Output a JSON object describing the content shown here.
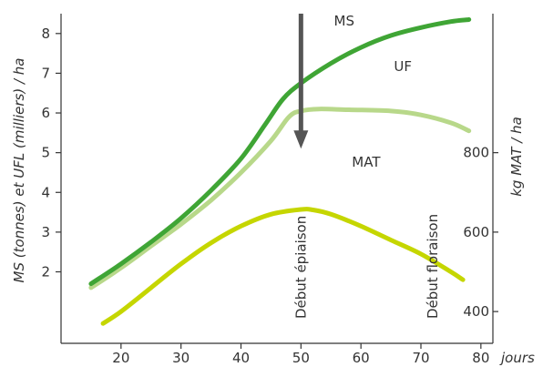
{
  "chart_data": {
    "type": "line",
    "xlabel": "jours",
    "ylabel_left": "MS (tonnes) et UFL (milliers) / ha",
    "ylabel_right": "kg MAT / ha",
    "xlim": [
      10,
      82
    ],
    "x_ticks": [
      20,
      30,
      40,
      50,
      60,
      70,
      80
    ],
    "ylim_left": [
      0.2,
      8.5
    ],
    "y_ticks_left": [
      2,
      3,
      4,
      5,
      6,
      7,
      8
    ],
    "y_ticks_right": [
      400,
      600,
      800
    ],
    "right_axis_scale": {
      "left_value_at_400": 1,
      "left_value_per_200": 2
    },
    "grid": false,
    "series": [
      {
        "name": "MS",
        "axis": "left",
        "color": "#3fa535",
        "x": [
          15,
          20,
          25,
          30,
          35,
          40,
          44,
          47,
          50,
          55,
          60,
          65,
          70,
          75,
          78
        ],
        "y": [
          1.7,
          2.2,
          2.75,
          3.35,
          4.05,
          4.85,
          5.7,
          6.35,
          6.75,
          7.25,
          7.65,
          7.95,
          8.15,
          8.3,
          8.35
        ]
      },
      {
        "name": "UF",
        "axis": "left",
        "color": "#b8d88a",
        "x": [
          15,
          20,
          25,
          30,
          35,
          40,
          45,
          48,
          50,
          53,
          58,
          65,
          70,
          75,
          78
        ],
        "y": [
          1.6,
          2.1,
          2.65,
          3.2,
          3.8,
          4.5,
          5.3,
          5.9,
          6.05,
          6.1,
          6.08,
          6.05,
          5.95,
          5.75,
          5.55
        ]
      },
      {
        "name": "MAT",
        "axis": "right",
        "color": "#c5d600",
        "x": [
          17,
          20,
          25,
          30,
          35,
          40,
          45,
          50,
          52,
          55,
          60,
          65,
          70,
          75,
          77
        ],
        "y": [
          370,
          400,
          460,
          520,
          573,
          615,
          645,
          657,
          656,
          645,
          615,
          580,
          545,
          500,
          480
        ]
      }
    ],
    "annotations": [
      {
        "text": "Début épiaison",
        "x": 50
      },
      {
        "text": "Début floraison",
        "x": 72
      }
    ],
    "arrow": {
      "x": 50,
      "y_from": 8.5,
      "y_to": 5.1,
      "color": "#555555"
    }
  }
}
